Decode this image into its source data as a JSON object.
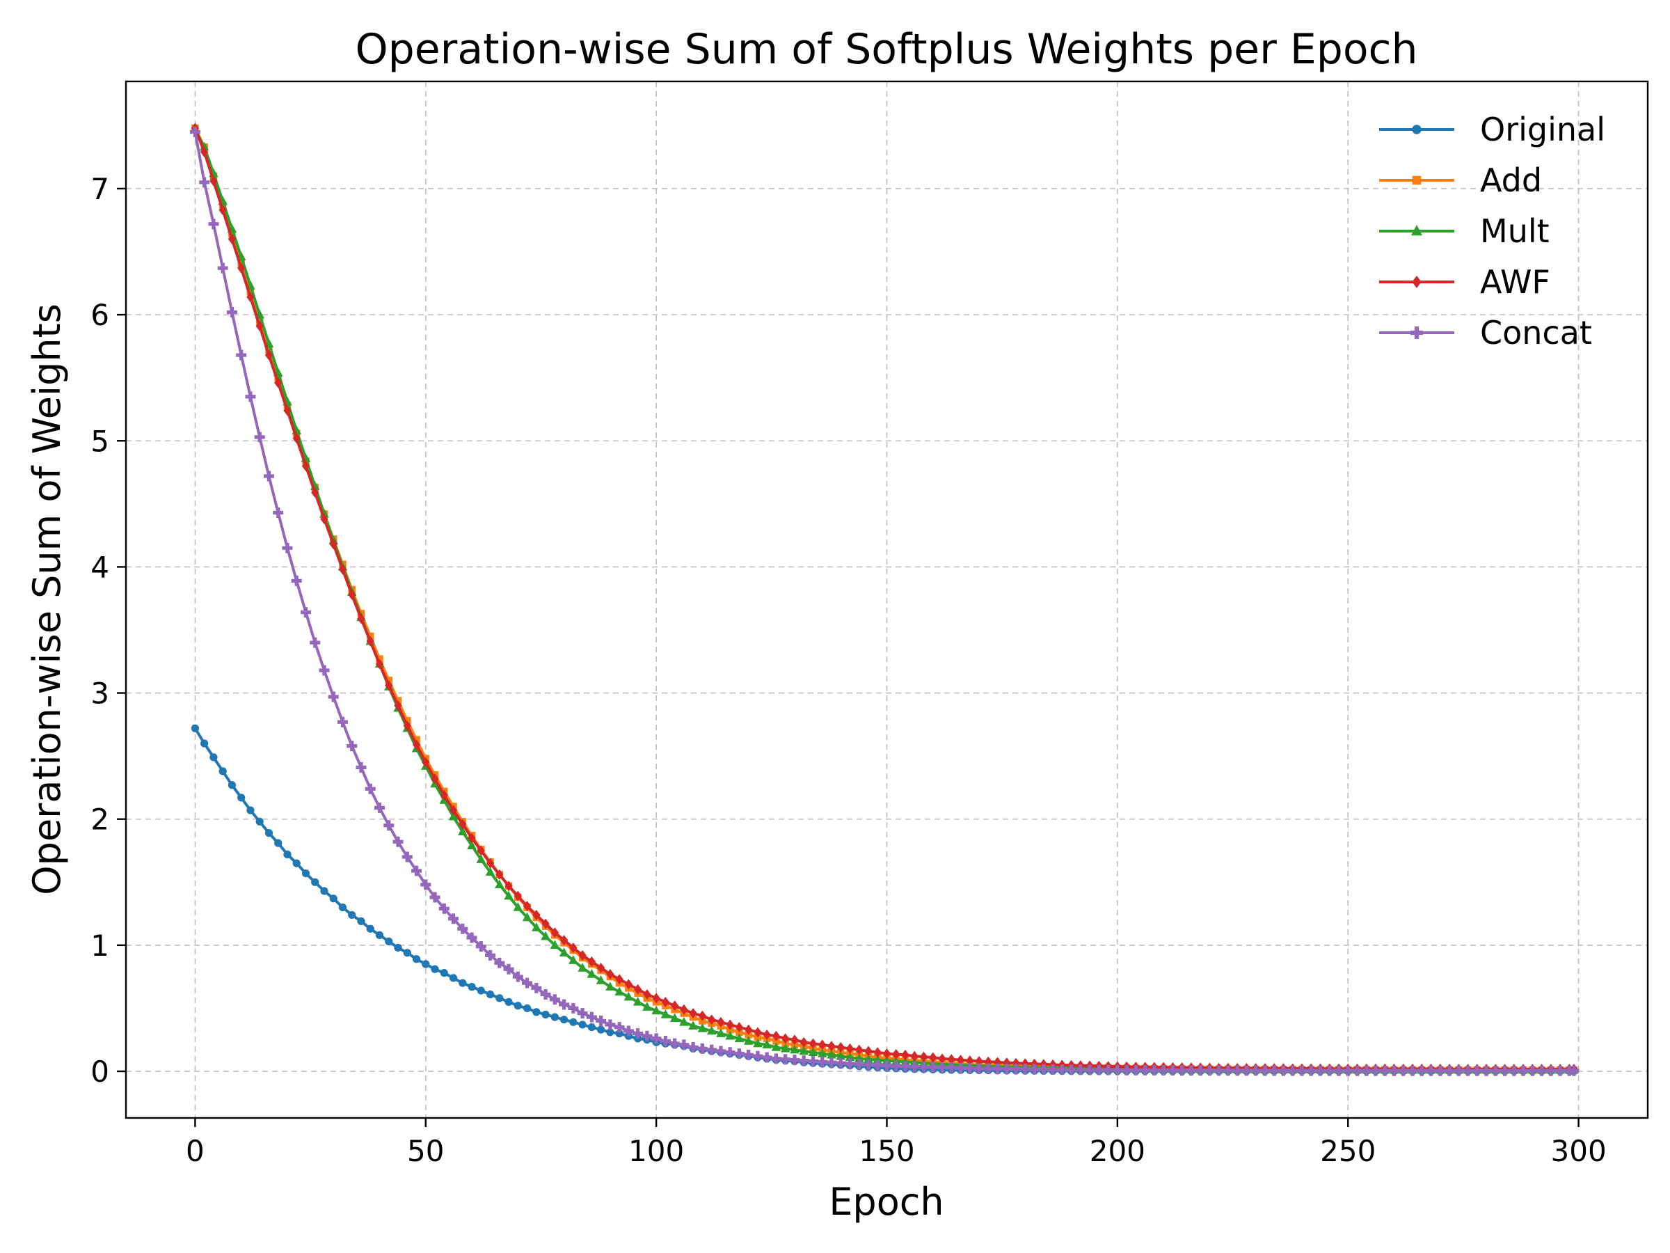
{
  "chart_data": {
    "type": "line",
    "title": "Operation-wise Sum of Softplus Weights per Epoch",
    "xlabel": "Epoch",
    "ylabel": "Operation-wise Sum of Weights",
    "xlim": [
      -15,
      315
    ],
    "ylim": [
      -0.37,
      7.85
    ],
    "xticks": [
      0,
      50,
      100,
      150,
      200,
      250,
      300
    ],
    "yticks": [
      0,
      1,
      2,
      3,
      4,
      5,
      6,
      7
    ],
    "grid": true,
    "legend_position": "top-right",
    "x": [
      0,
      2,
      4,
      6,
      8,
      10,
      12,
      14,
      16,
      18,
      20,
      22,
      24,
      26,
      28,
      30,
      32,
      34,
      36,
      38,
      40,
      42,
      44,
      46,
      48,
      50,
      52,
      54,
      56,
      58,
      60,
      62,
      64,
      66,
      68,
      70,
      72,
      74,
      76,
      78,
      80,
      82,
      84,
      86,
      88,
      90,
      92,
      94,
      96,
      98,
      100,
      102,
      104,
      106,
      108,
      110,
      112,
      114,
      116,
      118,
      120,
      122,
      124,
      126,
      128,
      130,
      132,
      134,
      136,
      138,
      140,
      142,
      144,
      146,
      148,
      150,
      152,
      154,
      156,
      158,
      160,
      162,
      164,
      166,
      168,
      170,
      172,
      174,
      176,
      178,
      180,
      182,
      184,
      186,
      188,
      190,
      192,
      194,
      196,
      198,
      200,
      202,
      204,
      206,
      208,
      210,
      212,
      214,
      216,
      218,
      220,
      222,
      224,
      226,
      228,
      230,
      232,
      234,
      236,
      238,
      240,
      242,
      244,
      246,
      248,
      250,
      252,
      254,
      256,
      258,
      260,
      262,
      264,
      266,
      268,
      270,
      272,
      274,
      276,
      278,
      280,
      282,
      284,
      286,
      288,
      290,
      292,
      294,
      296,
      298,
      299
    ],
    "series": [
      {
        "name": "Original",
        "color": "#1f77b4",
        "marker": "circle",
        "values": [
          2.72,
          2.6,
          2.49,
          2.38,
          2.27,
          2.17,
          2.07,
          1.98,
          1.89,
          1.81,
          1.72,
          1.65,
          1.57,
          1.5,
          1.43,
          1.37,
          1.3,
          1.24,
          1.19,
          1.13,
          1.08,
          1.03,
          0.98,
          0.94,
          0.89,
          0.85,
          0.81,
          0.78,
          0.74,
          0.7,
          0.67,
          0.64,
          0.61,
          0.58,
          0.55,
          0.52,
          0.5,
          0.47,
          0.45,
          0.43,
          0.41,
          0.39,
          0.37,
          0.35,
          0.33,
          0.31,
          0.3,
          0.28,
          0.26,
          0.25,
          0.23,
          0.22,
          0.21,
          0.2,
          0.18,
          0.17,
          0.16,
          0.15,
          0.14,
          0.13,
          0.12,
          0.11,
          0.1,
          0.09,
          0.085,
          0.08,
          0.07,
          0.065,
          0.06,
          0.055,
          0.05,
          0.045,
          0.04,
          0.035,
          0.03,
          0.026,
          0.023,
          0.02,
          0.018,
          0.016,
          0.014,
          0.012,
          0.011,
          0.01,
          0.009,
          0.008,
          0.007,
          0.006,
          0.005,
          0.005,
          0.004,
          0.004,
          0.003,
          0.003,
          0.003,
          0.002,
          0.002,
          0.002,
          0.002,
          0.001,
          0.001,
          0.001,
          0.001,
          0.001,
          0.001,
          0.001,
          0.001,
          0.001,
          0.001,
          0.001,
          0.001,
          0.001,
          0.001,
          0.001,
          0.001,
          0.001,
          0.001,
          0.001,
          0.001,
          0.001,
          0.001,
          0.001,
          0.001,
          0.001,
          0.001,
          0.001,
          0.001,
          0.001,
          0.001,
          0.001,
          0.001,
          0.001,
          0.001,
          0.001,
          0.001,
          0.001,
          0.001,
          0.001,
          0.001,
          0.001,
          0.001,
          0.001,
          0.001,
          0.001,
          0.001,
          0.001,
          0.001,
          0.001,
          0.001,
          0.001,
          0.001
        ]
      },
      {
        "name": "Add",
        "color": "#ff7f0e",
        "marker": "square",
        "values": [
          7.48,
          7.33,
          7.1,
          6.87,
          6.64,
          6.41,
          6.18,
          5.95,
          5.72,
          5.5,
          5.28,
          5.06,
          4.84,
          4.63,
          4.42,
          4.22,
          4.02,
          3.82,
          3.63,
          3.45,
          3.27,
          3.1,
          2.94,
          2.78,
          2.63,
          2.48,
          2.35,
          2.22,
          2.1,
          1.98,
          1.87,
          1.76,
          1.66,
          1.56,
          1.47,
          1.38,
          1.3,
          1.22,
          1.15,
          1.08,
          1.02,
          0.96,
          0.9,
          0.85,
          0.8,
          0.75,
          0.7,
          0.66,
          0.62,
          0.58,
          0.55,
          0.52,
          0.49,
          0.46,
          0.43,
          0.4,
          0.38,
          0.36,
          0.33,
          0.31,
          0.29,
          0.27,
          0.26,
          0.24,
          0.22,
          0.21,
          0.2,
          0.18,
          0.17,
          0.16,
          0.15,
          0.14,
          0.13,
          0.12,
          0.11,
          0.105,
          0.1,
          0.09,
          0.085,
          0.08,
          0.075,
          0.07,
          0.065,
          0.06,
          0.055,
          0.052,
          0.05,
          0.047,
          0.045,
          0.042,
          0.04,
          0.038,
          0.036,
          0.034,
          0.032,
          0.03,
          0.029,
          0.028,
          0.027,
          0.026,
          0.025,
          0.024,
          0.023,
          0.022,
          0.021,
          0.02,
          0.02,
          0.019,
          0.019,
          0.018,
          0.018,
          0.017,
          0.017,
          0.016,
          0.016,
          0.015,
          0.015,
          0.015,
          0.014,
          0.014,
          0.014,
          0.013,
          0.013,
          0.013,
          0.013,
          0.012,
          0.012,
          0.012,
          0.012,
          0.012,
          0.011,
          0.011,
          0.011,
          0.011,
          0.011,
          0.011,
          0.01,
          0.01,
          0.01,
          0.01,
          0.01,
          0.01,
          0.01,
          0.01,
          0.01,
          0.01,
          0.01,
          0.01,
          0.01,
          0.01,
          0.01
        ]
      },
      {
        "name": "Mult",
        "color": "#2ca02c",
        "marker": "triangle",
        "values": [
          7.47,
          7.33,
          7.12,
          6.9,
          6.68,
          6.46,
          6.23,
          6.0,
          5.77,
          5.54,
          5.31,
          5.08,
          4.86,
          4.64,
          4.42,
          4.21,
          4.0,
          3.8,
          3.6,
          3.41,
          3.23,
          3.05,
          2.88,
          2.72,
          2.56,
          2.42,
          2.28,
          2.15,
          2.02,
          1.9,
          1.79,
          1.68,
          1.58,
          1.48,
          1.39,
          1.3,
          1.22,
          1.14,
          1.07,
          1.0,
          0.94,
          0.88,
          0.82,
          0.77,
          0.72,
          0.67,
          0.63,
          0.59,
          0.55,
          0.51,
          0.48,
          0.45,
          0.42,
          0.39,
          0.36,
          0.34,
          0.32,
          0.3,
          0.28,
          0.26,
          0.24,
          0.22,
          0.21,
          0.19,
          0.18,
          0.17,
          0.16,
          0.15,
          0.14,
          0.13,
          0.12,
          0.11,
          0.1,
          0.095,
          0.09,
          0.085,
          0.08,
          0.075,
          0.07,
          0.065,
          0.06,
          0.056,
          0.052,
          0.049,
          0.046,
          0.043,
          0.04,
          0.038,
          0.036,
          0.034,
          0.032,
          0.03,
          0.028,
          0.027,
          0.026,
          0.025,
          0.024,
          0.023,
          0.022,
          0.021,
          0.02,
          0.019,
          0.019,
          0.018,
          0.018,
          0.017,
          0.017,
          0.016,
          0.016,
          0.015,
          0.015,
          0.015,
          0.014,
          0.014,
          0.014,
          0.013,
          0.013,
          0.013,
          0.013,
          0.012,
          0.012,
          0.012,
          0.012,
          0.012,
          0.011,
          0.011,
          0.011,
          0.011,
          0.011,
          0.011,
          0.01,
          0.01,
          0.01,
          0.01,
          0.01,
          0.01,
          0.01,
          0.01,
          0.01,
          0.01,
          0.01,
          0.01,
          0.01,
          0.01,
          0.01,
          0.01,
          0.01,
          0.01,
          0.01,
          0.01,
          0.01
        ]
      },
      {
        "name": "AWF",
        "color": "#d62728",
        "marker": "diamond",
        "values": [
          7.48,
          7.29,
          7.06,
          6.83,
          6.6,
          6.37,
          6.14,
          5.91,
          5.68,
          5.46,
          5.24,
          5.02,
          4.8,
          4.59,
          4.38,
          4.18,
          3.98,
          3.78,
          3.59,
          3.41,
          3.23,
          3.06,
          2.9,
          2.74,
          2.59,
          2.45,
          2.32,
          2.19,
          2.07,
          1.96,
          1.85,
          1.75,
          1.65,
          1.56,
          1.47,
          1.39,
          1.31,
          1.24,
          1.17,
          1.1,
          1.04,
          0.98,
          0.92,
          0.87,
          0.82,
          0.77,
          0.73,
          0.69,
          0.65,
          0.61,
          0.58,
          0.55,
          0.52,
          0.49,
          0.46,
          0.44,
          0.41,
          0.39,
          0.37,
          0.35,
          0.33,
          0.31,
          0.29,
          0.28,
          0.26,
          0.25,
          0.23,
          0.22,
          0.21,
          0.2,
          0.19,
          0.18,
          0.17,
          0.16,
          0.15,
          0.14,
          0.135,
          0.13,
          0.12,
          0.115,
          0.11,
          0.1,
          0.095,
          0.09,
          0.085,
          0.08,
          0.076,
          0.072,
          0.068,
          0.065,
          0.062,
          0.059,
          0.056,
          0.053,
          0.05,
          0.048,
          0.046,
          0.044,
          0.042,
          0.04,
          0.038,
          0.037,
          0.035,
          0.034,
          0.033,
          0.032,
          0.031,
          0.03,
          0.029,
          0.028,
          0.027,
          0.026,
          0.026,
          0.025,
          0.025,
          0.024,
          0.024,
          0.023,
          0.023,
          0.022,
          0.022,
          0.022,
          0.021,
          0.021,
          0.021,
          0.02,
          0.02,
          0.02,
          0.02,
          0.02,
          0.019,
          0.019,
          0.019,
          0.019,
          0.019,
          0.019,
          0.018,
          0.018,
          0.018,
          0.018,
          0.018,
          0.018,
          0.018,
          0.018,
          0.018,
          0.018,
          0.018,
          0.018,
          0.018,
          0.018,
          0.018
        ]
      },
      {
        "name": "Concat",
        "color": "#9467bd",
        "marker": "plus",
        "values": [
          7.45,
          7.05,
          6.72,
          6.37,
          6.02,
          5.68,
          5.35,
          5.03,
          4.72,
          4.43,
          4.15,
          3.89,
          3.64,
          3.4,
          3.18,
          2.97,
          2.77,
          2.58,
          2.41,
          2.24,
          2.09,
          1.95,
          1.82,
          1.7,
          1.59,
          1.48,
          1.38,
          1.29,
          1.21,
          1.13,
          1.06,
          0.99,
          0.92,
          0.86,
          0.81,
          0.75,
          0.7,
          0.66,
          0.61,
          0.57,
          0.53,
          0.5,
          0.46,
          0.43,
          0.4,
          0.37,
          0.35,
          0.32,
          0.3,
          0.28,
          0.26,
          0.24,
          0.22,
          0.21,
          0.19,
          0.18,
          0.17,
          0.16,
          0.15,
          0.14,
          0.13,
          0.12,
          0.11,
          0.1,
          0.095,
          0.09,
          0.085,
          0.08,
          0.075,
          0.07,
          0.065,
          0.06,
          0.056,
          0.052,
          0.048,
          0.045,
          0.042,
          0.039,
          0.036,
          0.034,
          0.032,
          0.03,
          0.028,
          0.026,
          0.024,
          0.022,
          0.021,
          0.02,
          0.019,
          0.018,
          0.017,
          0.016,
          0.015,
          0.014,
          0.013,
          0.012,
          0.012,
          0.011,
          0.011,
          0.01,
          0.01,
          0.009,
          0.009,
          0.009,
          0.008,
          0.008,
          0.008,
          0.007,
          0.007,
          0.007,
          0.007,
          0.006,
          0.006,
          0.006,
          0.006,
          0.006,
          0.005,
          0.005,
          0.005,
          0.005,
          0.005,
          0.005,
          0.005,
          0.005,
          0.004,
          0.004,
          0.004,
          0.004,
          0.004,
          0.004,
          0.004,
          0.004,
          0.004,
          0.004,
          0.004,
          0.004,
          0.004,
          0.004,
          0.004,
          0.004,
          0.004,
          0.004,
          0.004,
          0.004,
          0.004,
          0.004,
          0.004,
          0.004,
          0.004,
          0.004,
          0.004
        ]
      }
    ]
  }
}
